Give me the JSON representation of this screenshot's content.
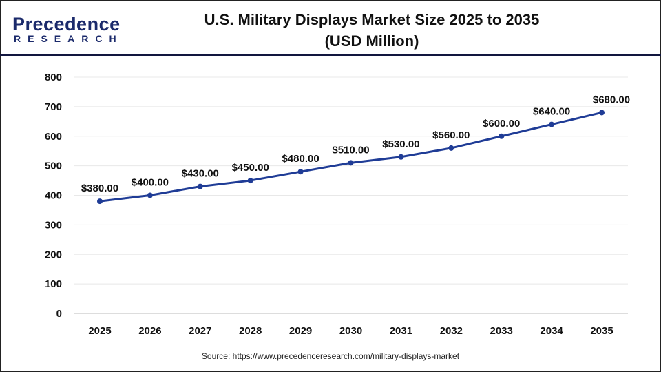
{
  "logo": {
    "line1": "Precedence",
    "line2": "RESEARCH"
  },
  "title_line1": "U.S. Military Displays Market Size 2025 to 2035",
  "title_line2": "(USD Million)",
  "source": "Source: https://www.precedenceresearch.com/military-displays-market",
  "colors": {
    "line": "#1f3c96",
    "header_rule": "#12163f",
    "grid": "#e8e8e8"
  },
  "chart_data": {
    "type": "line",
    "title": "U.S. Military Displays Market Size 2025 to 2035 (USD Million)",
    "categories": [
      "2025",
      "2026",
      "2027",
      "2028",
      "2029",
      "2030",
      "2031",
      "2032",
      "2033",
      "2034",
      "2035"
    ],
    "values": [
      380,
      400,
      430,
      450,
      480,
      510,
      530,
      560,
      600,
      640,
      680
    ],
    "data_labels": [
      "$380.00",
      "$400.00",
      "$430.00",
      "$450.00",
      "$480.00",
      "$510.00",
      "$530.00",
      "$560.00",
      "$600.00",
      "$640.00",
      "$680.00"
    ],
    "yticks": [
      0,
      100,
      200,
      300,
      400,
      500,
      600,
      700,
      800
    ],
    "ylim": [
      0,
      800
    ],
    "grid": true,
    "legend": "none"
  }
}
